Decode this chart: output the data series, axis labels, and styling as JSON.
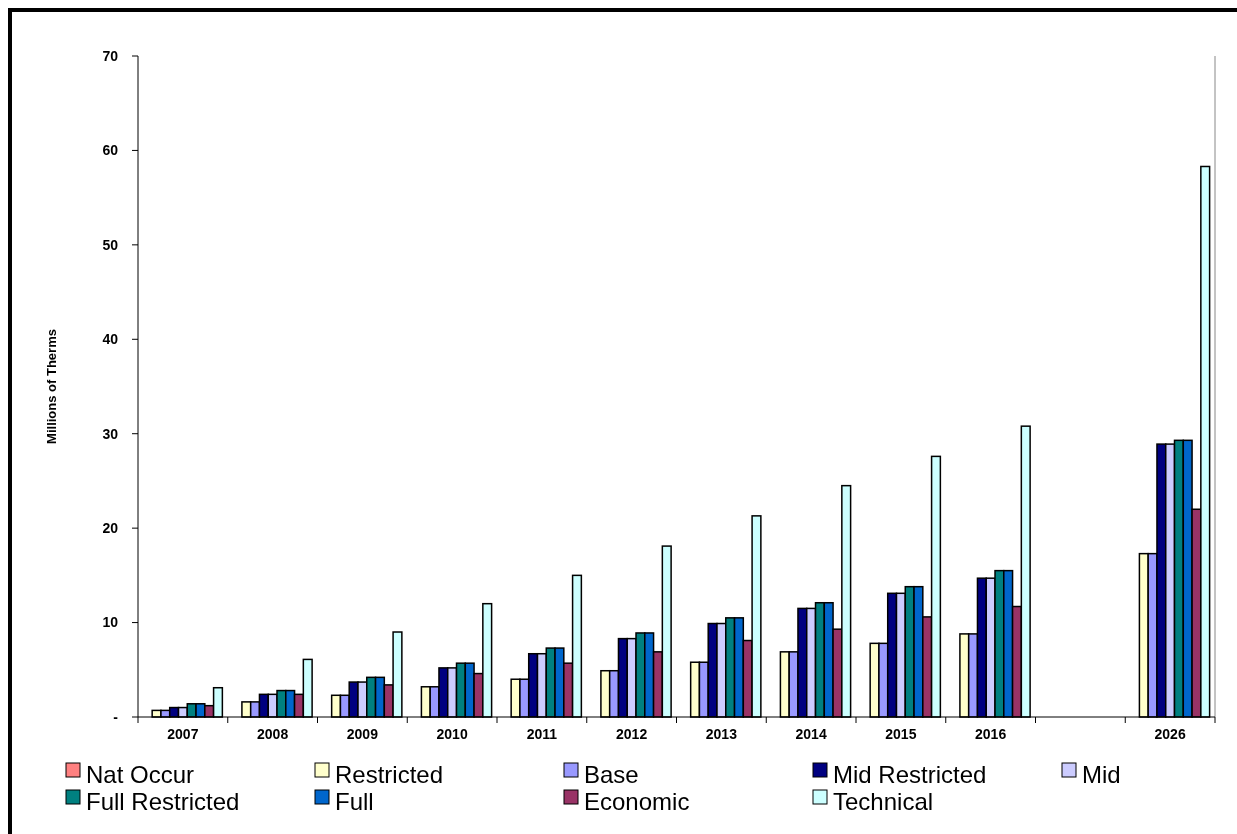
{
  "chart_data": {
    "type": "bar",
    "ylabel": "Millions of Therms",
    "categories": [
      "2007",
      "2008",
      "2009",
      "2010",
      "2011",
      "2012",
      "2013",
      "2014",
      "2015",
      "2016",
      null,
      "2026"
    ],
    "ylim": [
      0,
      70
    ],
    "yticks": [
      {
        "value": 0,
        "label": "-"
      },
      10,
      20,
      30,
      40,
      50,
      60,
      70
    ],
    "grid": false,
    "legend": "bottom",
    "series": [
      {
        "name": "Nat Occur",
        "color": "#ff8080",
        "values": [
          0,
          0,
          0,
          0,
          0,
          0,
          0,
          0,
          0,
          0,
          null,
          0
        ]
      },
      {
        "name": "Restricted",
        "color": "#ffffcc",
        "values": [
          0.7,
          1.6,
          2.3,
          3.2,
          4.0,
          4.9,
          5.8,
          6.9,
          7.8,
          8.8,
          null,
          17.3
        ]
      },
      {
        "name": "Base",
        "color": "#9999ff",
        "values": [
          0.7,
          1.6,
          2.3,
          3.2,
          4.0,
          4.9,
          5.8,
          6.9,
          7.8,
          8.8,
          null,
          17.3
        ]
      },
      {
        "name": "Mid Restricted",
        "color": "#000080",
        "values": [
          1.0,
          2.4,
          3.7,
          5.2,
          6.7,
          8.3,
          9.9,
          11.5,
          13.1,
          14.7,
          null,
          28.9
        ]
      },
      {
        "name": "Mid",
        "color": "#ccccff",
        "values": [
          1.0,
          2.4,
          3.7,
          5.2,
          6.7,
          8.3,
          9.9,
          11.5,
          13.1,
          14.7,
          null,
          28.9
        ]
      },
      {
        "name": "Full Restricted",
        "color": "#008080",
        "values": [
          1.4,
          2.8,
          4.2,
          5.7,
          7.3,
          8.9,
          10.5,
          12.1,
          13.8,
          15.5,
          null,
          29.3
        ]
      },
      {
        "name": "Full",
        "color": "#0066cc",
        "values": [
          1.4,
          2.8,
          4.2,
          5.7,
          7.3,
          8.9,
          10.5,
          12.1,
          13.8,
          15.5,
          null,
          29.3
        ]
      },
      {
        "name": "Economic",
        "color": "#993366",
        "values": [
          1.2,
          2.4,
          3.4,
          4.6,
          5.7,
          6.9,
          8.1,
          9.3,
          10.6,
          11.7,
          null,
          22.0
        ]
      },
      {
        "name": "Technical",
        "color": "#ccffff",
        "values": [
          3.1,
          6.1,
          9.0,
          12.0,
          15.0,
          18.1,
          21.3,
          24.5,
          27.6,
          30.8,
          null,
          58.3
        ]
      }
    ]
  }
}
